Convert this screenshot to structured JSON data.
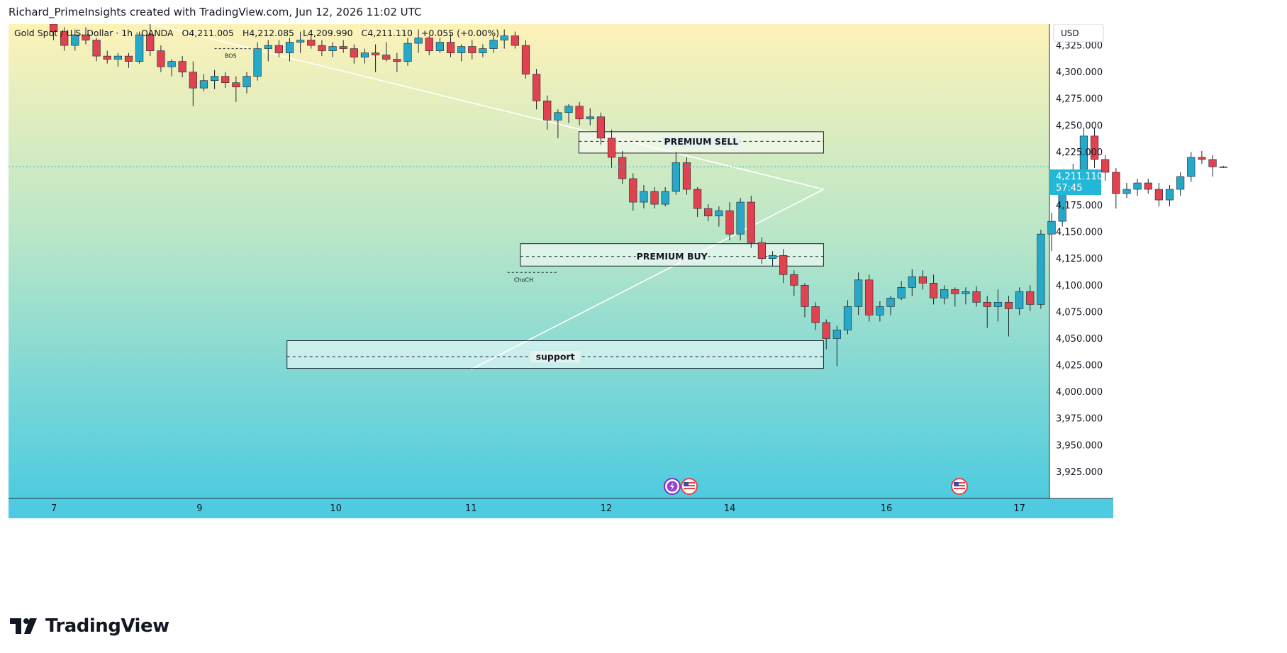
{
  "header": {
    "caption": "Richard_PrimeInsights created with TradingView.com, Jun 12, 2026 11:02 UTC"
  },
  "legend": {
    "symbol": "Gold Spot / U.S. Dollar · 1h · OANDA",
    "open": "O4,211.005",
    "high": "H4,212.085",
    "low": "L4,209.990",
    "close": "C4,211.110",
    "change": "+0.055 (+0.00%)"
  },
  "price_axis": {
    "currency_label": "USD",
    "current_price": "4,211.110",
    "countdown": "57:45"
  },
  "footer": {
    "brand": "TradingView"
  },
  "colors": {
    "up": "#26a8c9",
    "down": "#e0434f",
    "bg_top": "#fdf2b8",
    "bg_bottom": "#4ecbe0",
    "price_tag": "#22b7d6",
    "event_red": "#e8414a",
    "event_purple": "#9b3fd6"
  },
  "chart_data": {
    "type": "candlestick",
    "title": "Gold Spot / U.S. Dollar · 1h · OANDA",
    "ylim": [
      3900,
      4345
    ],
    "y_ticks": [
      4325,
      4300,
      4275,
      4250,
      4225,
      4175,
      4150,
      4125,
      4100,
      4075,
      4050,
      4025,
      4000,
      3975,
      3950,
      3925
    ],
    "y_tick_labels": [
      "4,325.000",
      "4,300.000",
      "4,275.000",
      "4,250.000",
      "4,225.000",
      "4,175.000",
      "4,150.000",
      "4,125.000",
      "4,100.000",
      "4,075.000",
      "4,050.000",
      "4,025.000",
      "4,000.000",
      "3,975.000",
      "3,950.000",
      "3,925.000"
    ],
    "x_ticks": [
      {
        "label": "7",
        "t": 0.035
      },
      {
        "label": "9",
        "t": 13.6
      },
      {
        "label": "10",
        "t": 26.3
      },
      {
        "label": "11",
        "t": 38.9
      },
      {
        "label": "12",
        "t": 51.5
      },
      {
        "label": "14",
        "t": 63.0
      },
      {
        "label": "16",
        "t": 77.6
      },
      {
        "label": "17",
        "t": 90.0
      }
    ],
    "x_range": [
      -4.2,
      92.8
    ],
    "candles": [
      [
        4345,
        4350,
        4330,
        4338
      ],
      [
        4338,
        4342,
        4320,
        4325
      ],
      [
        4325,
        4340,
        4320,
        4335
      ],
      [
        4335,
        4342,
        4326,
        4330
      ],
      [
        4330,
        4332,
        4310,
        4315
      ],
      [
        4315,
        4320,
        4308,
        4312
      ],
      [
        4312,
        4318,
        4305,
        4315
      ],
      [
        4315,
        4318,
        4304,
        4310
      ],
      [
        4310,
        4338,
        4308,
        4335
      ],
      [
        4335,
        4345,
        4315,
        4320
      ],
      [
        4320,
        4325,
        4300,
        4305
      ],
      [
        4305,
        4312,
        4296,
        4310
      ],
      [
        4310,
        4315,
        4295,
        4300
      ],
      [
        4300,
        4310,
        4268,
        4285
      ],
      [
        4285,
        4298,
        4282,
        4292
      ],
      [
        4292,
        4302,
        4284,
        4296
      ],
      [
        4296,
        4300,
        4285,
        4290
      ],
      [
        4290,
        4296,
        4272,
        4286
      ],
      [
        4286,
        4300,
        4280,
        4296
      ],
      [
        4296,
        4328,
        4292,
        4322
      ],
      [
        4322,
        4330,
        4310,
        4325
      ],
      [
        4325,
        4330,
        4314,
        4318
      ],
      [
        4318,
        4332,
        4310,
        4328
      ],
      [
        4328,
        4338,
        4318,
        4330
      ],
      [
        4330,
        4334,
        4322,
        4325
      ],
      [
        4325,
        4330,
        4315,
        4320
      ],
      [
        4320,
        4328,
        4314,
        4324
      ],
      [
        4324,
        4330,
        4318,
        4322
      ],
      [
        4322,
        4326,
        4308,
        4314
      ],
      [
        4314,
        4322,
        4308,
        4318
      ],
      [
        4318,
        4326,
        4300,
        4316
      ],
      [
        4316,
        4328,
        4310,
        4312
      ],
      [
        4312,
        4318,
        4300,
        4310
      ],
      [
        4310,
        4332,
        4306,
        4327
      ],
      [
        4327,
        4340,
        4318,
        4332
      ],
      [
        4332,
        4334,
        4316,
        4320
      ],
      [
        4320,
        4332,
        4318,
        4328
      ],
      [
        4328,
        4336,
        4314,
        4318
      ],
      [
        4318,
        4326,
        4310,
        4324
      ],
      [
        4324,
        4330,
        4312,
        4318
      ],
      [
        4318,
        4326,
        4314,
        4322
      ],
      [
        4322,
        4334,
        4318,
        4330
      ],
      [
        4330,
        4340,
        4322,
        4334
      ],
      [
        4334,
        4338,
        4322,
        4325
      ],
      [
        4325,
        4330,
        4294,
        4298
      ],
      [
        4298,
        4303,
        4265,
        4273
      ],
      [
        4273,
        4278,
        4246,
        4255
      ],
      [
        4255,
        4265,
        4238,
        4262
      ],
      [
        4262,
        4270,
        4252,
        4268
      ],
      [
        4268,
        4272,
        4250,
        4256
      ],
      [
        4256,
        4266,
        4250,
        4258
      ],
      [
        4258,
        4262,
        4232,
        4238
      ],
      [
        4238,
        4246,
        4210,
        4220
      ],
      [
        4220,
        4226,
        4195,
        4200
      ],
      [
        4200,
        4205,
        4170,
        4178
      ],
      [
        4178,
        4194,
        4172,
        4188
      ],
      [
        4188,
        4192,
        4172,
        4176
      ],
      [
        4176,
        4192,
        4174,
        4188
      ],
      [
        4188,
        4225,
        4185,
        4215
      ],
      [
        4215,
        4220,
        4185,
        4190
      ],
      [
        4190,
        4192,
        4164,
        4172
      ],
      [
        4172,
        4176,
        4160,
        4165
      ],
      [
        4165,
        4174,
        4155,
        4170
      ],
      [
        4170,
        4178,
        4142,
        4148
      ],
      [
        4148,
        4182,
        4142,
        4178
      ],
      [
        4178,
        4184,
        4135,
        4140
      ],
      [
        4140,
        4145,
        4120,
        4125
      ],
      [
        4125,
        4132,
        4118,
        4128
      ],
      [
        4128,
        4134,
        4102,
        4110
      ],
      [
        4110,
        4114,
        4090,
        4100
      ],
      [
        4100,
        4102,
        4070,
        4080
      ],
      [
        4080,
        4084,
        4058,
        4065
      ],
      [
        4065,
        4068,
        4040,
        4050
      ],
      [
        4050,
        4062,
        4024,
        4058
      ],
      [
        4058,
        4086,
        4054,
        4080
      ],
      [
        4080,
        4112,
        4072,
        4105
      ],
      [
        4105,
        4110,
        4066,
        4072
      ],
      [
        4072,
        4085,
        4066,
        4080
      ],
      [
        4080,
        4090,
        4072,
        4088
      ],
      [
        4088,
        4104,
        4086,
        4098
      ],
      [
        4098,
        4115,
        4090,
        4108
      ],
      [
        4108,
        4114,
        4096,
        4102
      ],
      [
        4102,
        4110,
        4082,
        4088
      ],
      [
        4088,
        4100,
        4082,
        4096
      ],
      [
        4096,
        4098,
        4080,
        4092
      ],
      [
        4092,
        4098,
        4082,
        4094
      ],
      [
        4094,
        4099,
        4080,
        4084
      ],
      [
        4084,
        4090,
        4060,
        4080
      ],
      [
        4080,
        4096,
        4066,
        4084
      ],
      [
        4084,
        4090,
        4052,
        4078
      ],
      [
        4078,
        4098,
        4072,
        4094
      ],
      [
        4094,
        4100,
        4076,
        4082
      ],
      [
        4082,
        4152,
        4078,
        4148
      ],
      [
        4148,
        4168,
        4132,
        4160
      ],
      [
        4160,
        4200,
        4155,
        4195
      ],
      [
        4195,
        4214,
        4190,
        4197
      ],
      [
        4197,
        4248,
        4193,
        4240
      ],
      [
        4240,
        4248,
        4210,
        4218
      ],
      [
        4218,
        4222,
        4198,
        4206
      ],
      [
        4206,
        4210,
        4172,
        4186
      ],
      [
        4186,
        4196,
        4182,
        4190
      ],
      [
        4190,
        4200,
        4184,
        4196
      ],
      [
        4196,
        4200,
        4186,
        4190
      ],
      [
        4190,
        4196,
        4174,
        4180
      ],
      [
        4180,
        4194,
        4174,
        4190
      ],
      [
        4190,
        4206,
        4184,
        4202
      ],
      [
        4202,
        4225,
        4197,
        4220
      ],
      [
        4220,
        4226,
        4214,
        4218
      ],
      [
        4218,
        4222,
        4202,
        4211.11
      ],
      [
        4211,
        4212.08,
        4209.99,
        4211.11
      ]
    ],
    "zones": [
      {
        "label": "PREMIUM SELL",
        "top": 4244,
        "bottom": 4224,
        "mid": 4235,
        "t_start": 48.95,
        "t_end": 71.75
      },
      {
        "label": "PREMIUM BUY",
        "top": 4139,
        "bottom": 4118,
        "mid": 4127,
        "t_start": 43.5,
        "t_end": 71.75
      },
      {
        "label": "support",
        "top": 4048,
        "bottom": 4022,
        "mid": 4033,
        "t_start": 21.75,
        "t_end": 71.75
      }
    ],
    "markers": [
      {
        "label": "BOS",
        "t": 16.5,
        "price": 4322,
        "t_from": 15.0,
        "t_to": 18.6
      },
      {
        "label": "ChoCH",
        "t": 43.8,
        "price": 4112,
        "t_from": 42.3,
        "t_to": 46.9
      }
    ],
    "trendlines": [
      {
        "from": {
          "t": 5.1,
          "price": 4355
        },
        "to": {
          "t": 71.75,
          "price": 4190
        }
      },
      {
        "from": {
          "t": 38.9,
          "price": 4021
        },
        "to": {
          "t": 71.75,
          "price": 4190
        }
      }
    ]
  }
}
